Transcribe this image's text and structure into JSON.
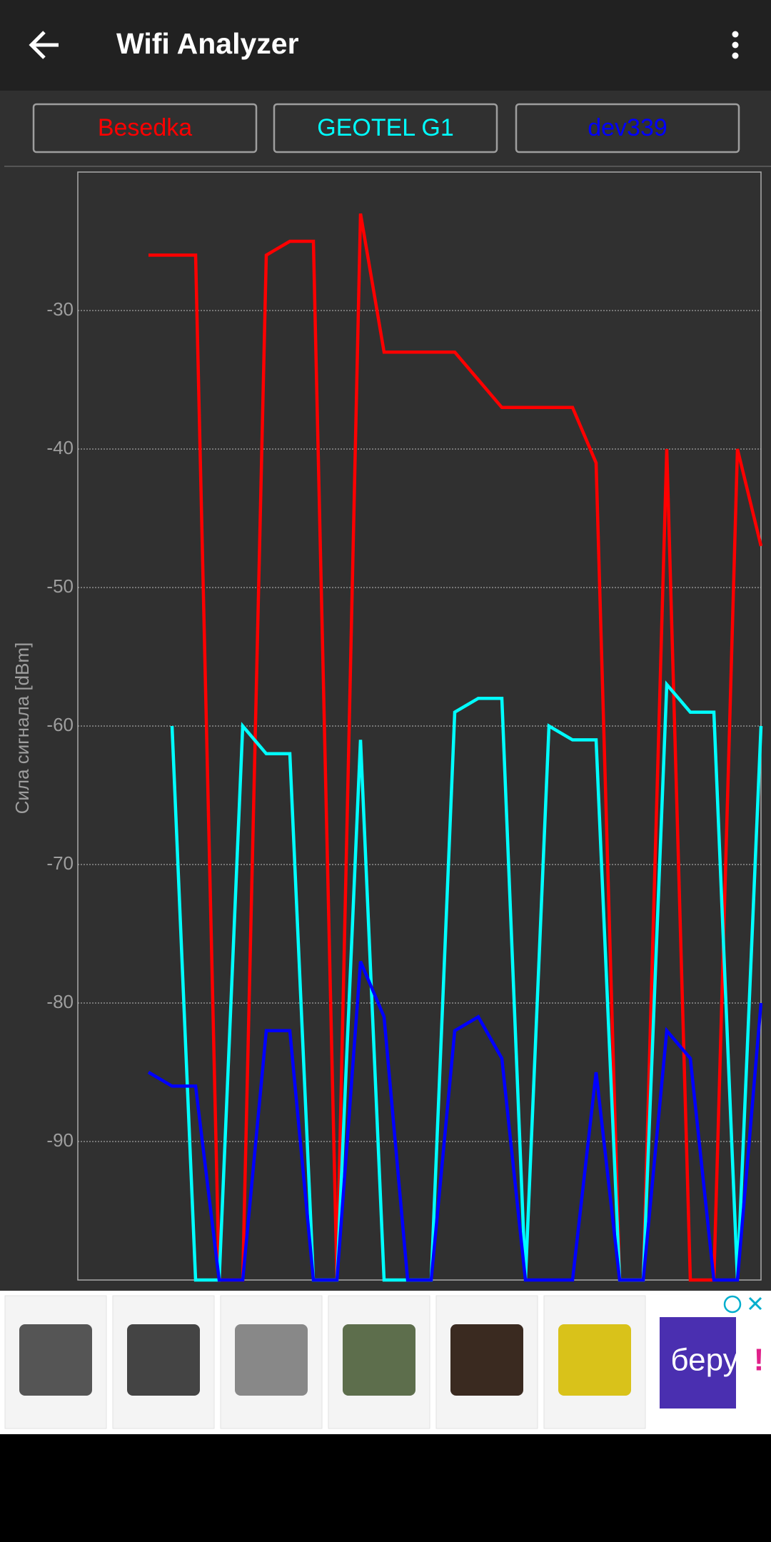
{
  "app_bar": {
    "title": "Wifi Analyzer"
  },
  "chart_data": {
    "type": "line",
    "y_label": "Сила сигнала [dBm]",
    "x": [
      3,
      4,
      5,
      6,
      7,
      8,
      9,
      10,
      11,
      12,
      13,
      14,
      15,
      16,
      17,
      18,
      19,
      20,
      21,
      22,
      23,
      24,
      25,
      26,
      27,
      28,
      29
    ],
    "xlim": [
      0,
      29
    ],
    "ylim": [
      -100,
      -20
    ],
    "yticks": [
      -90,
      -80,
      -70,
      -60,
      -50,
      -40,
      -30
    ],
    "grid": true,
    "series": [
      {
        "name": "Besedka",
        "color": "#ff0000",
        "values": [
          -26,
          -26,
          -26,
          -100,
          -100,
          -26,
          -25,
          -25,
          -100,
          -23,
          -33,
          -33,
          -33,
          -33,
          -35,
          -37,
          -37,
          -37,
          -37,
          -41,
          -100,
          -100,
          -40,
          -100,
          -100,
          -40,
          -47
        ]
      },
      {
        "name": "GEOTEL G1",
        "color": "#00ffff",
        "values": [
          null,
          -60,
          -100,
          -100,
          -60,
          -62,
          -62,
          -100,
          -100,
          -61,
          -100,
          -100,
          -100,
          -59,
          -58,
          -58,
          -100,
          -60,
          -61,
          -61,
          -100,
          -100,
          -57,
          -59,
          -59,
          -100,
          -60
        ]
      },
      {
        "name": "dev339",
        "color": "#0000ff",
        "values": [
          -85,
          -86,
          -86,
          -100,
          -100,
          -82,
          -82,
          -100,
          -100,
          -77,
          -81,
          -100,
          -100,
          -82,
          -81,
          -84,
          -100,
          -100,
          -100,
          -85,
          -100,
          -100,
          -82,
          -84,
          -100,
          -100,
          -80
        ]
      }
    ]
  },
  "ad": {
    "brand": "беру",
    "mark": "!"
  }
}
